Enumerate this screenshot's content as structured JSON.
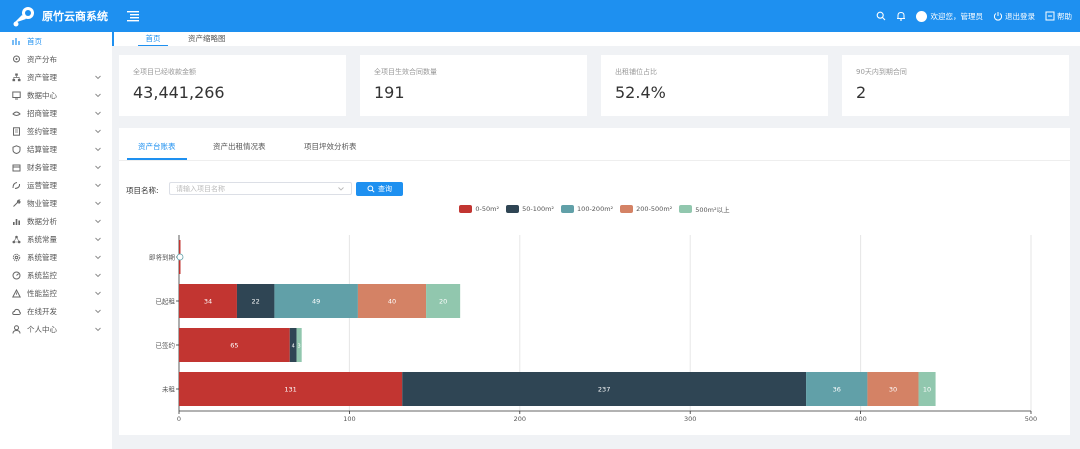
{
  "app": {
    "title": "原竹云商系统"
  },
  "header": {
    "welcome": "欢迎您，管理员",
    "logout": "退出登录",
    "help": "帮助"
  },
  "sidebar": {
    "items": [
      {
        "label": "首页",
        "icon": "home-icon",
        "active": true,
        "expandable": false
      },
      {
        "label": "资产分布",
        "icon": "location-pin-icon",
        "active": false,
        "expandable": false
      },
      {
        "label": "资产管理",
        "icon": "sitemap-icon",
        "active": false,
        "expandable": true
      },
      {
        "label": "数据中心",
        "icon": "monitor-icon",
        "active": false,
        "expandable": true
      },
      {
        "label": "招商管理",
        "icon": "handshake-icon",
        "active": false,
        "expandable": true
      },
      {
        "label": "签约管理",
        "icon": "contract-icon",
        "active": false,
        "expandable": true
      },
      {
        "label": "结算管理",
        "icon": "settlement-icon",
        "active": false,
        "expandable": true
      },
      {
        "label": "财务管理",
        "icon": "finance-icon",
        "active": false,
        "expandable": true
      },
      {
        "label": "运营管理",
        "icon": "operations-icon",
        "active": false,
        "expandable": true
      },
      {
        "label": "物业管理",
        "icon": "wrench-icon",
        "active": false,
        "expandable": true
      },
      {
        "label": "数据分析",
        "icon": "bar-chart-icon",
        "active": false,
        "expandable": true
      },
      {
        "label": "系统常量",
        "icon": "network-icon",
        "active": false,
        "expandable": true
      },
      {
        "label": "系统管理",
        "icon": "gear-icon",
        "active": false,
        "expandable": true
      },
      {
        "label": "系统监控",
        "icon": "dashboard-icon",
        "active": false,
        "expandable": true
      },
      {
        "label": "性能监控",
        "icon": "warning-icon",
        "active": false,
        "expandable": true
      },
      {
        "label": "在线开发",
        "icon": "cloud-icon",
        "active": false,
        "expandable": true
      },
      {
        "label": "个人中心",
        "icon": "user-icon",
        "active": false,
        "expandable": true
      }
    ]
  },
  "page_tabs": [
    {
      "label": "首页",
      "active": true
    },
    {
      "label": "资产缩略图",
      "active": false
    }
  ],
  "stats": [
    {
      "label": "全项目已经收款金额",
      "value": "43,441,266"
    },
    {
      "label": "全项目生效合同数量",
      "value": "191"
    },
    {
      "label": "出租铺位占比",
      "value": "52.4%"
    },
    {
      "label": "90天内到期合同",
      "value": "2"
    }
  ],
  "panel": {
    "tabs": [
      {
        "label": "资产台账表",
        "active": true
      },
      {
        "label": "资产出租情况表",
        "active": false
      },
      {
        "label": "项目坪效分析表",
        "active": false
      }
    ],
    "filter": {
      "label": "项目名称:",
      "placeholder": "请输入项目名称",
      "button": "查询"
    }
  },
  "chart_data": {
    "type": "bar",
    "orientation": "horizontal",
    "stacked": true,
    "categories": [
      "即将到期",
      "已起租",
      "已签约",
      "未租"
    ],
    "series": [
      {
        "name": "0-50m²",
        "color": "#c23531",
        "values": [
          0,
          34,
          65,
          131
        ]
      },
      {
        "name": "50-100m²",
        "color": "#2f4554",
        "values": [
          0,
          22,
          4,
          237
        ]
      },
      {
        "name": "100-200m²",
        "color": "#61a0a8",
        "values": [
          0,
          49,
          0,
          36
        ]
      },
      {
        "name": "200-500m²",
        "color": "#d48265",
        "values": [
          0,
          40,
          0,
          30
        ]
      },
      {
        "name": "500m²以上",
        "color": "#91c7ae",
        "values": [
          0,
          20,
          3,
          10
        ]
      }
    ],
    "xlim": [
      0,
      500
    ],
    "xticks": [
      0,
      100,
      200,
      300,
      400,
      500
    ],
    "legend_position": "top-center",
    "grid": true
  }
}
